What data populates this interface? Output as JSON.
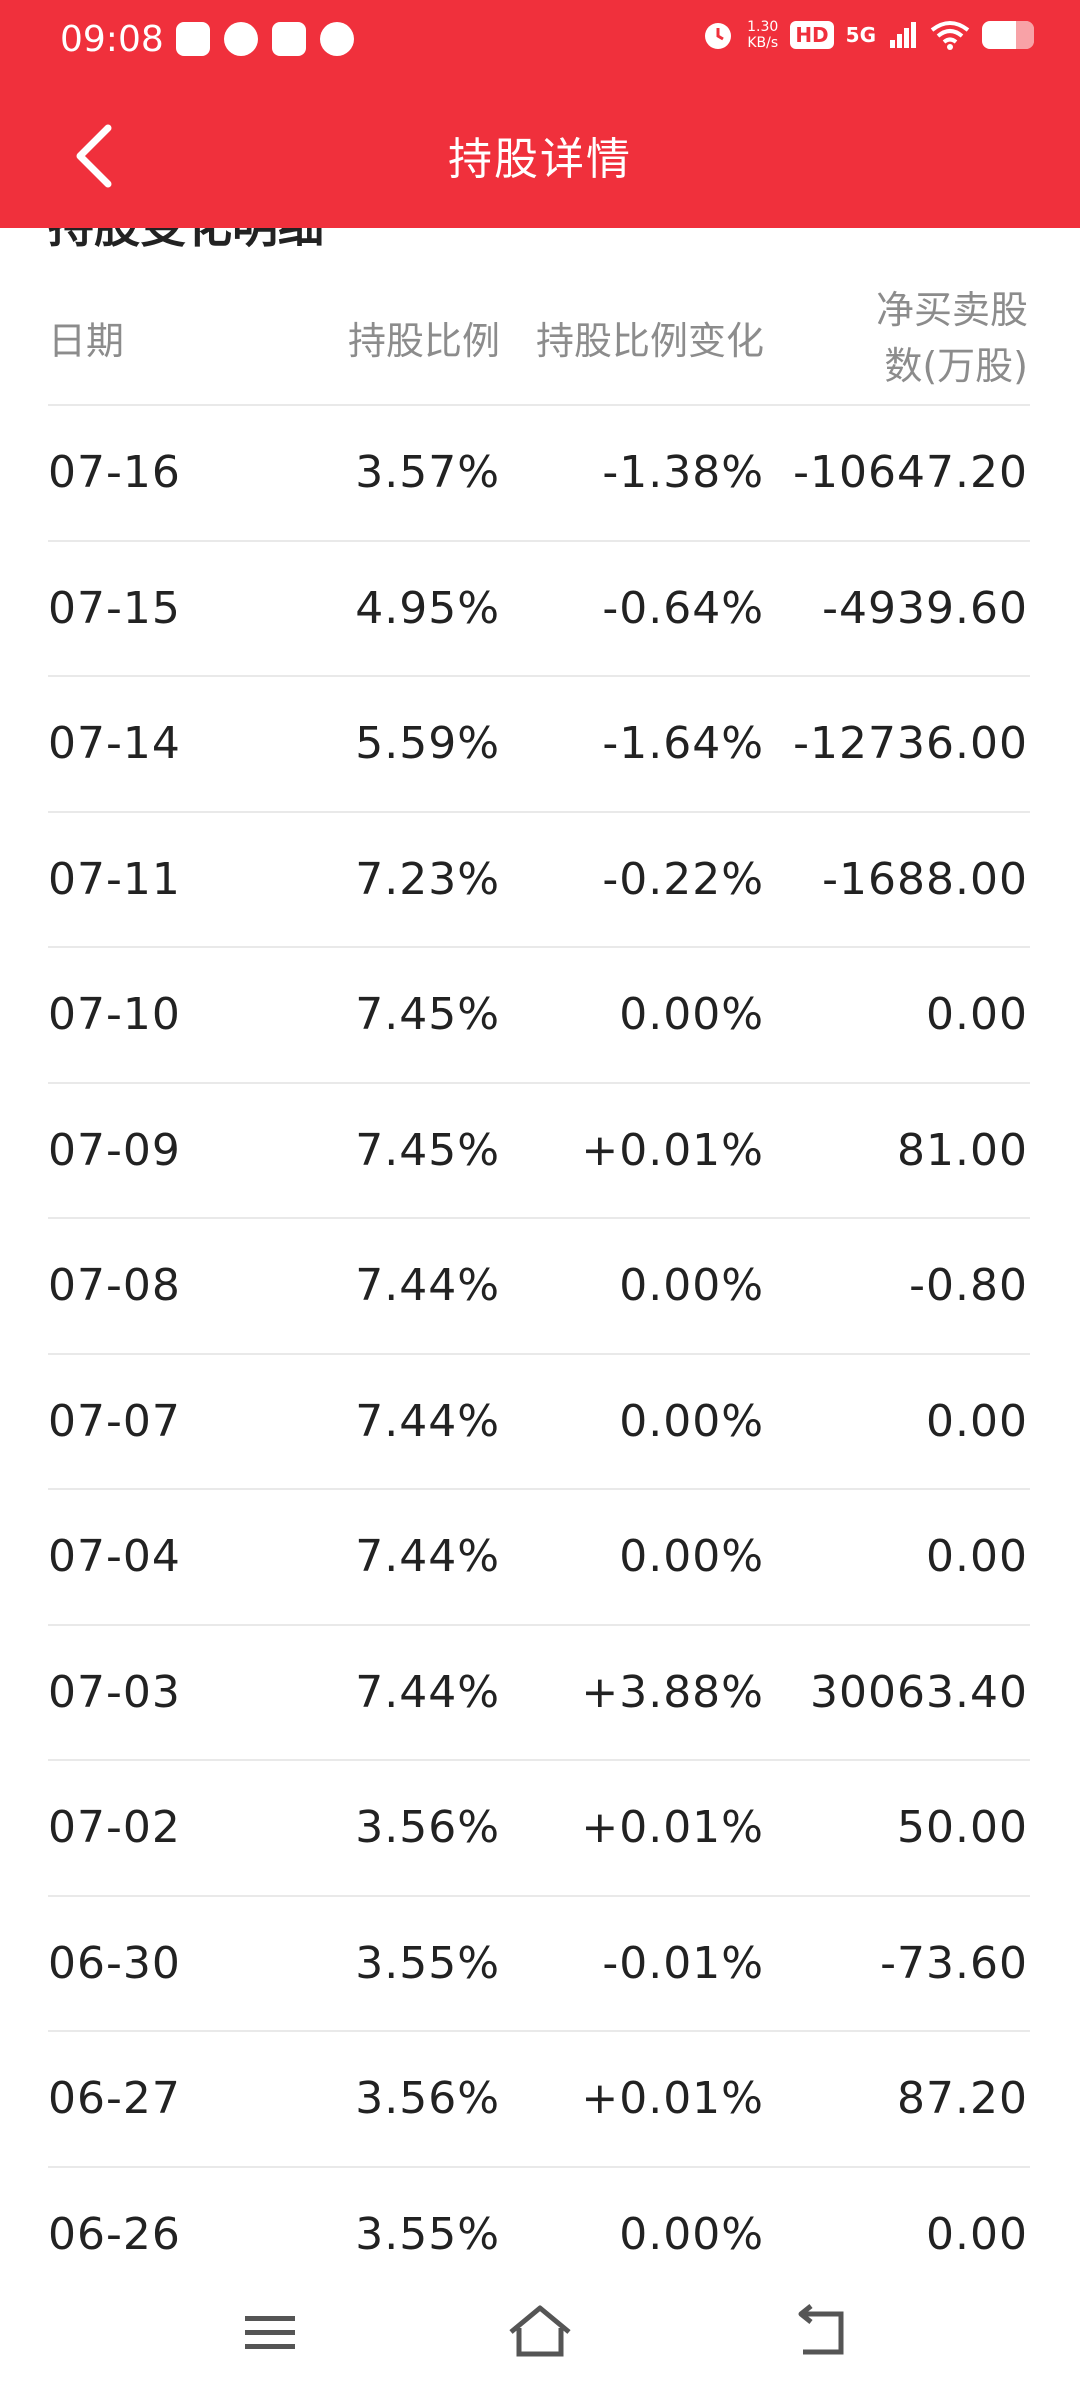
{
  "status_bar": {
    "time": "09:08",
    "net_speed_value": "1.30",
    "net_speed_unit": "KB/s",
    "hd": "HD",
    "network": "5G"
  },
  "header": {
    "title": "持股详情",
    "back_icon": "chevron-left-icon"
  },
  "section": {
    "title": "持股变化明细"
  },
  "table": {
    "columns": [
      "日期",
      "持股比例",
      "持股比例变化",
      "净买卖股",
      "数(万股)"
    ],
    "rows": [
      {
        "date": "07-16",
        "ratio": "3.57%",
        "change": "-1.38%",
        "net": "-10647.20"
      },
      {
        "date": "07-15",
        "ratio": "4.95%",
        "change": "-0.64%",
        "net": "-4939.60"
      },
      {
        "date": "07-14",
        "ratio": "5.59%",
        "change": "-1.64%",
        "net": "-12736.00"
      },
      {
        "date": "07-11",
        "ratio": "7.23%",
        "change": "-0.22%",
        "net": "-1688.00"
      },
      {
        "date": "07-10",
        "ratio": "7.45%",
        "change": "0.00%",
        "net": "0.00"
      },
      {
        "date": "07-09",
        "ratio": "7.45%",
        "change": "+0.01%",
        "net": "81.00"
      },
      {
        "date": "07-08",
        "ratio": "7.44%",
        "change": "0.00%",
        "net": "-0.80"
      },
      {
        "date": "07-07",
        "ratio": "7.44%",
        "change": "0.00%",
        "net": "0.00"
      },
      {
        "date": "07-04",
        "ratio": "7.44%",
        "change": "0.00%",
        "net": "0.00"
      },
      {
        "date": "07-03",
        "ratio": "7.44%",
        "change": "+3.88%",
        "net": "30063.40"
      },
      {
        "date": "07-02",
        "ratio": "3.56%",
        "change": "+0.01%",
        "net": "50.00"
      },
      {
        "date": "06-30",
        "ratio": "3.55%",
        "change": "-0.01%",
        "net": "-73.60"
      },
      {
        "date": "06-27",
        "ratio": "3.56%",
        "change": "+0.01%",
        "net": "87.20"
      },
      {
        "date": "06-26",
        "ratio": "3.55%",
        "change": "0.00%",
        "net": "0.00"
      }
    ]
  },
  "nav": {
    "menu_icon": "menu-icon",
    "home_icon": "home-icon",
    "back_icon": "back-arrow-icon"
  },
  "colors": {
    "accent": "#f0303c",
    "header_text": "#8c8c8c",
    "divider": "#e9e9e9"
  }
}
